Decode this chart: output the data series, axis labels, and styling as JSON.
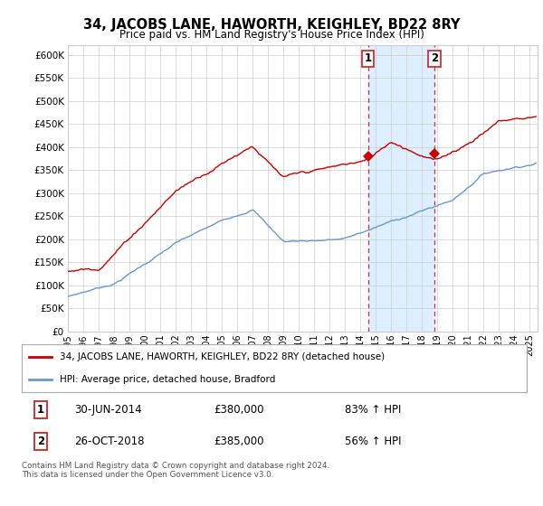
{
  "title": "34, JACOBS LANE, HAWORTH, KEIGHLEY, BD22 8RY",
  "subtitle": "Price paid vs. HM Land Registry's House Price Index (HPI)",
  "legend_line1": "34, JACOBS LANE, HAWORTH, KEIGHLEY, BD22 8RY (detached house)",
  "legend_line2": "HPI: Average price, detached house, Bradford",
  "footnote": "Contains HM Land Registry data © Crown copyright and database right 2024.\nThis data is licensed under the Open Government Licence v3.0.",
  "annotation1_date": "30-JUN-2014",
  "annotation1_price": "£380,000",
  "annotation1_pct": "83% ↑ HPI",
  "annotation2_date": "26-OCT-2018",
  "annotation2_price": "£385,000",
  "annotation2_pct": "56% ↑ HPI",
  "sale1_x": 2014.5,
  "sale1_y": 380000,
  "sale2_x": 2018.8,
  "sale2_y": 385000,
  "vline1_x": 2014.5,
  "vline2_x": 2018.8,
  "hpi_color": "#6699CC",
  "price_color": "#CC0000",
  "vline_color": "#CC3333",
  "highlight_color": "#DDEEFF",
  "background_color": "#FFFFFF",
  "grid_color": "#CCCCCC",
  "ylim": [
    0,
    620000
  ],
  "xlim_start": 1995,
  "xlim_end": 2025.5,
  "ytick_labels": [
    "£0",
    "£50K",
    "£100K",
    "£150K",
    "£200K",
    "£250K",
    "£300K",
    "£350K",
    "£400K",
    "£450K",
    "£500K",
    "£550K",
    "£600K"
  ],
  "ytick_vals": [
    0,
    50000,
    100000,
    150000,
    200000,
    250000,
    300000,
    350000,
    400000,
    450000,
    500000,
    550000,
    600000
  ],
  "xtick_years": [
    1995,
    1996,
    1997,
    1998,
    1999,
    2000,
    2001,
    2002,
    2003,
    2004,
    2005,
    2006,
    2007,
    2008,
    2009,
    2010,
    2011,
    2012,
    2013,
    2014,
    2015,
    2016,
    2017,
    2018,
    2019,
    2020,
    2021,
    2022,
    2023,
    2024,
    2025
  ]
}
